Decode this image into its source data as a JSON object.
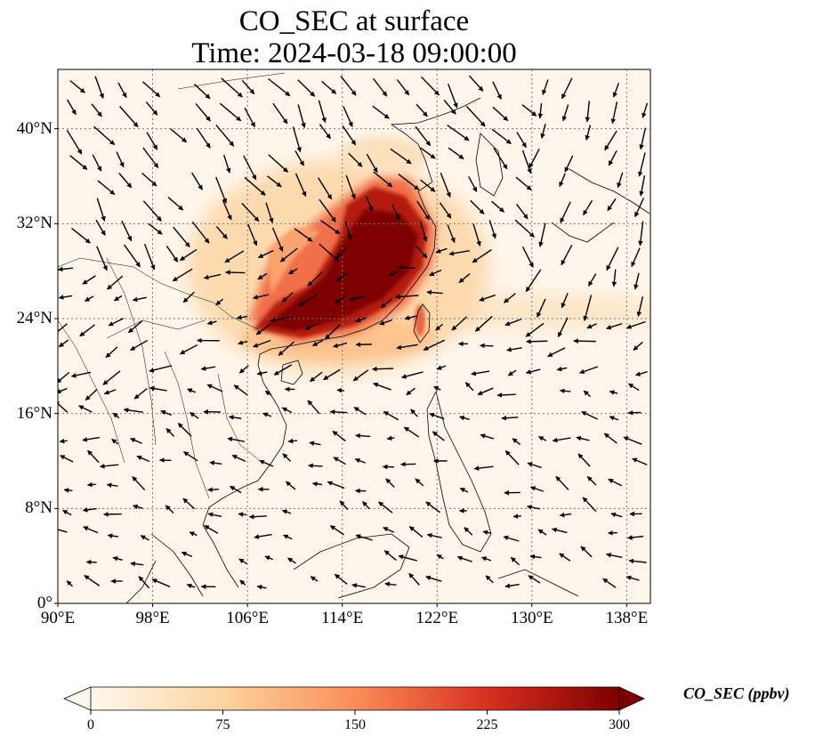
{
  "title": {
    "line1": "CO_SEC at surface",
    "line2": "Time: 2024-03-18 09:00:00"
  },
  "map": {
    "lon_range": [
      90,
      140
    ],
    "lat_range": [
      0,
      45
    ],
    "lon_ticks": [
      {
        "value": 90,
        "label": "90°E"
      },
      {
        "value": 98,
        "label": "98°E"
      },
      {
        "value": 106,
        "label": "106°E"
      },
      {
        "value": 114,
        "label": "114°E"
      },
      {
        "value": 122,
        "label": "122°E"
      },
      {
        "value": 130,
        "label": "130°E"
      },
      {
        "value": 138,
        "label": "138°E"
      }
    ],
    "lat_ticks": [
      {
        "value": 0,
        "label": "0°"
      },
      {
        "value": 8,
        "label": "8°N"
      },
      {
        "value": 16,
        "label": "16°N"
      },
      {
        "value": 24,
        "label": "24°N"
      },
      {
        "value": 32,
        "label": "32°N"
      },
      {
        "value": 40,
        "label": "40°N"
      }
    ],
    "gridlines": true
  },
  "colorbar": {
    "label": "CO_SEC (ppbv)",
    "min": 0,
    "max": 300,
    "ticks": [
      {
        "value": 0,
        "label": "0"
      },
      {
        "value": 75,
        "label": "75"
      },
      {
        "value": 150,
        "label": "150"
      },
      {
        "value": 225,
        "label": "225"
      },
      {
        "value": 300,
        "label": "300"
      }
    ],
    "colors": [
      "#fff7ec",
      "#fdd49e",
      "#fc8d59",
      "#d7301f",
      "#7f0000"
    ]
  }
}
